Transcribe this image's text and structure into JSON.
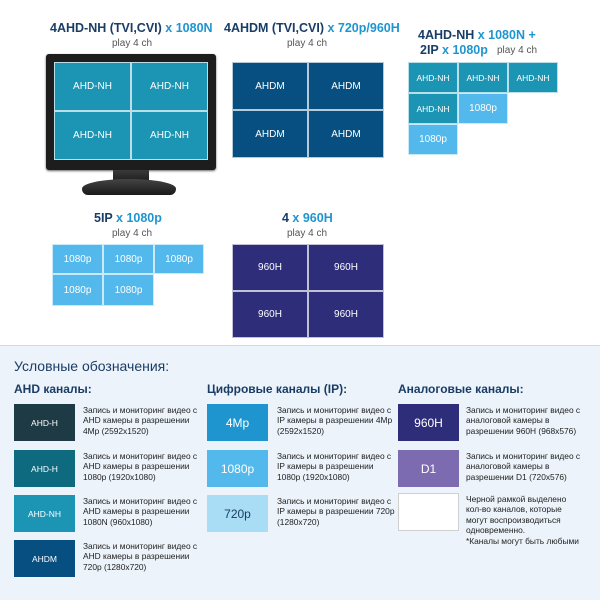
{
  "colors": {
    "ahd_h": "#1e3b45",
    "ahd_nh": "#1b95b3",
    "ahdm": "#064f80",
    "ip_4mp": "#1f95cf",
    "ip_1080p": "#53b9ec",
    "ip_720p": "#a9dcf5",
    "h960": "#2e2d7a",
    "d1": "#7c6bb0",
    "title_dark": "#1a3d66",
    "title_accent": "#1f95cf"
  },
  "modes": {
    "m1": {
      "title_main": "4AHD-NH (TVI,CVI)",
      "title_accent": " x 1080N",
      "subtitle": "play 4 ch",
      "tiles": [
        "AHD-NH",
        "AHD-NH",
        "AHD-NH",
        "AHD-NH"
      ]
    },
    "m2": {
      "title_main": "4AHDM (TVI,CVI)",
      "title_accent": " x 720p/960H",
      "subtitle": "play 4 ch",
      "tiles": [
        "AHDM",
        "AHDM",
        "AHDM",
        "AHDM"
      ]
    },
    "m3": {
      "title_line1_main": "4AHD-NH",
      "title_line1_accent": " x 1080N +",
      "title_line2_main": "2IP",
      "title_line2_accent": " x 1080p",
      "subtitle": "play 4 ch",
      "tiles": [
        "AHD-NH",
        "AHD-NH",
        "AHD-NH",
        "AHD-NH",
        "1080p",
        "1080p"
      ]
    },
    "m4": {
      "title_main": "5IP",
      "title_accent": " x 1080p",
      "subtitle": "play 4 ch",
      "tiles": [
        "1080p",
        "1080p",
        "1080p",
        "1080p",
        "1080p"
      ]
    },
    "m5": {
      "title_main": "4",
      "title_accent": " x 960H",
      "subtitle": "play 4 ch",
      "tiles": [
        "960H",
        "960H",
        "960H",
        "960H"
      ]
    }
  },
  "legend": {
    "title": "Условные обозначения:",
    "ahd_head": "AHD каналы:",
    "ip_head": "Цифровые каналы (IP):",
    "analog_head": "Аналоговые каналы:",
    "ahd": [
      {
        "label": "AHD-H",
        "desc": "Запись и мониторинг видео с AHD камеры в разрешении 4Mp (2592x1520)"
      },
      {
        "label": "AHD-H",
        "desc": "Запись и мониторинг видео с AHD камеры в разрешении 1080p (1920x1080)"
      },
      {
        "label": "AHD-NH",
        "desc": "Запись и мониторинг видео с AHD камеры в разрешении 1080N (960x1080)"
      },
      {
        "label": "AHDM",
        "desc": "Запись и мониторинг видео с AHD камеры в разрешении 720p (1280x720)"
      }
    ],
    "ip": [
      {
        "label": "4Mp",
        "desc": "Запись и мониторинг видео с IP камеры в разрешении 4Mp (2592x1520)"
      },
      {
        "label": "1080p",
        "desc": "Запись и мониторинг видео с IP камеры в разрешении 1080p (1920x1080)"
      },
      {
        "label": "720p",
        "desc": "Запись и мониторинг видео с IP камеры в разрешении 720p (1280x720)"
      }
    ],
    "analog": [
      {
        "label": "960H",
        "desc": "Запись и мониторинг видео с аналоговой камеры в разрешении 960H (968x576)"
      },
      {
        "label": "D1",
        "desc": "Запись и мониторинг видео с аналоговой камеры в разрешении  D1 (720x576)"
      },
      {
        "label": "",
        "desc": "Черной рамкой выделено кол-во каналов, которые могут воспроизводиться одновременно."
      },
      {
        "label": "",
        "desc": "*Каналы могут быть любыми"
      }
    ]
  }
}
